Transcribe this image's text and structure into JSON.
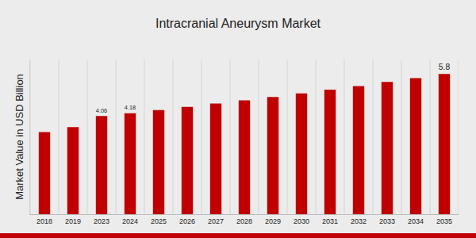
{
  "chart_data": {
    "type": "bar",
    "title": "Intracranial Aneurysm Market",
    "y_label": "Market Value in USD Billion",
    "categories": [
      "2018",
      "2019",
      "2023",
      "2024",
      "2025",
      "2026",
      "2027",
      "2028",
      "2029",
      "2030",
      "2031",
      "2032",
      "2033",
      "2034",
      "2035"
    ],
    "values": [
      3.4,
      3.6,
      4.06,
      4.18,
      4.31,
      4.44,
      4.58,
      4.71,
      4.85,
      5.0,
      5.15,
      5.3,
      5.47,
      5.63,
      5.8
    ],
    "value_labels": [
      null,
      null,
      "4.06",
      "4.18",
      null,
      null,
      null,
      null,
      null,
      null,
      null,
      null,
      null,
      null,
      "5.8"
    ],
    "data_labels": true,
    "color": "#c00000",
    "ylim": [
      0,
      6.4
    ],
    "yticks": [],
    "grid": true,
    "tick_labels": "x"
  }
}
